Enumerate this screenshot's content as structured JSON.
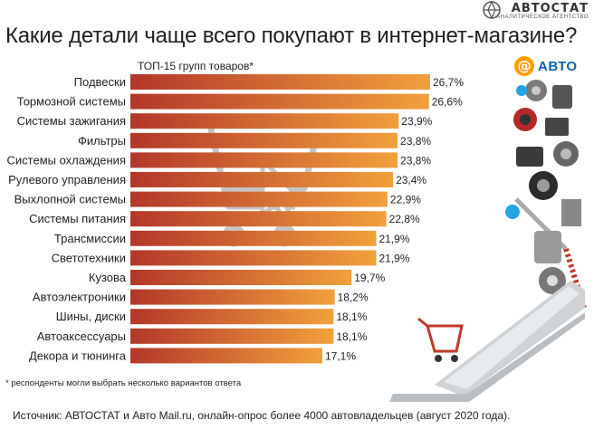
{
  "header": {
    "brand": "АВТОСТАТ",
    "brand_sub": "АНАЛИТИЧЕСКОЕ АГЕНТСТВО",
    "title": "Какие детали чаще всего покупают в интернет-магазине?",
    "subtitle": "ТОП-15 групп товаров*",
    "partner_logo_text": "АВТО",
    "partner_logo_symbol": "@"
  },
  "footer": {
    "footnote": "* респонденты могли выбрать несколько вариантов ответа",
    "source": "Источник: АВТОСТАТ и Авто Mail.ru, онлайн-опрос более 4000 автовладельцев (август 2020 года)."
  },
  "colors": {
    "bar_start": "#b3372a",
    "bar_end": "#f2a03c",
    "accent_blue": "#26a5e4",
    "partner_orange": "#ff9e00",
    "partner_blue": "#0d5fa8"
  },
  "icons": [
    "shopping-cart-watermark-icon",
    "cursor-arrow-icon",
    "laptop-cart-illustration-icon",
    "car-parts-illustration-icon"
  ],
  "chart_data": {
    "type": "bar",
    "orientation": "horizontal",
    "title": "Какие детали чаще всего покупают в интернет-магазине?",
    "subtitle": "ТОП-15 групп товаров*",
    "categories": [
      "Подвески",
      "Тормозной системы",
      "Системы зажигания",
      "Фильтры",
      "Системы охлаждения",
      "Рулевого управления",
      "Выхлопной системы",
      "Системы питания",
      "Трансмиссии",
      "Светотехники",
      "Кузова",
      "Автоэлектроники",
      "Шины, диски",
      "Автоаксессуары",
      "Декора и тюнинга"
    ],
    "values": [
      26.7,
      26.6,
      23.9,
      23.8,
      23.8,
      23.4,
      22.9,
      22.8,
      21.9,
      21.9,
      19.7,
      18.2,
      18.1,
      18.1,
      17.1
    ],
    "value_labels": [
      "26,7%",
      "26,6%",
      "23,9%",
      "23,8%",
      "23,8%",
      "23,4%",
      "22,9%",
      "22,8%",
      "21,9%",
      "21,9%",
      "19,7%",
      "18,2%",
      "18,1%",
      "18,1%",
      "17,1%"
    ],
    "unit": "%",
    "xlim": [
      0,
      26.7
    ],
    "grid": false,
    "legend": "none"
  }
}
